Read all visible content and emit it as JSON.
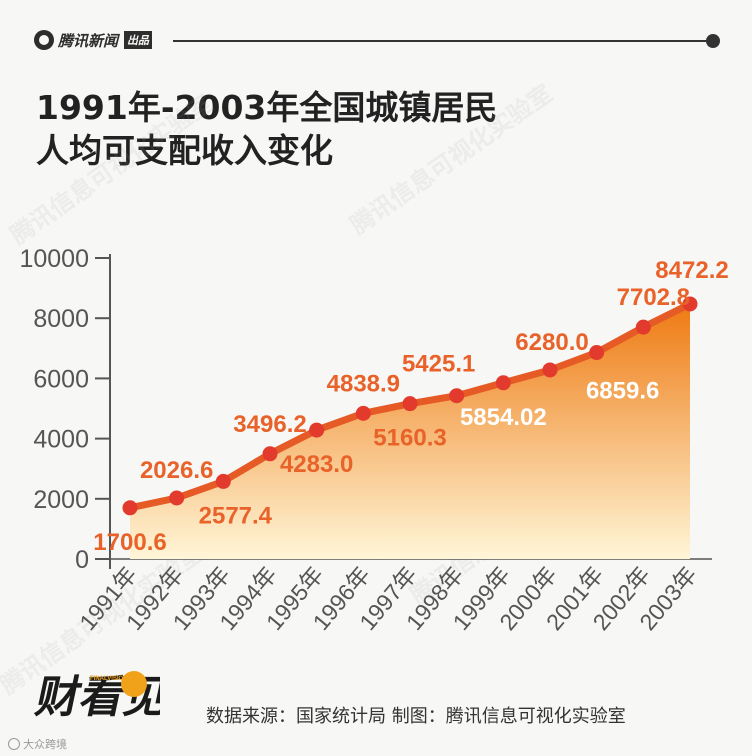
{
  "header": {
    "brand_name": "腾讯新闻",
    "brand_tag": "出品"
  },
  "title": {
    "line1": "1991年-2003年全国城镇居民",
    "line2": "人均可支配收入变化"
  },
  "footer": {
    "logo_text": "财看见",
    "logo_sub": "FINALVISION",
    "source": "数据来源：国家统计局 制图：腾讯信息可视化实验室",
    "corner_mark": "大众跨境"
  },
  "watermark_text": "腾讯信息可视化实验室",
  "colors": {
    "line": "#e65a26",
    "point": "#e23b2e",
    "label": "#e8622a",
    "label_light": "#ffffff",
    "area_top": "#ee7a12",
    "area_bottom": "#fff6d8",
    "axis_text": "#555555"
  },
  "chart_data": {
    "type": "area",
    "categories": [
      "1991年",
      "1992年",
      "1993年",
      "1994年",
      "1995年",
      "1996年",
      "1997年",
      "1998年",
      "1999年",
      "2000年",
      "2001年",
      "2002年",
      "2003年"
    ],
    "values": [
      1700.6,
      2026.6,
      2577.4,
      3496.2,
      4283.0,
      4838.9,
      5160.3,
      5425.1,
      5854.02,
      6280.0,
      6859.6,
      7702.8,
      8472.2
    ],
    "data_labels": [
      "1700.6",
      "2026.6",
      "2577.4",
      "3496.2",
      "4283.0",
      "4838.9",
      "5160.3",
      "5425.1",
      "5854.02",
      "6280.0",
      "6859.6",
      "7702.8",
      "8472.2"
    ],
    "yticks": [
      "0",
      "2000",
      "4000",
      "6000",
      "8000",
      "10000"
    ],
    "ylim": [
      0,
      10000
    ],
    "grid": false,
    "title": "1991年-2003年全国城镇居民人均可支配收入变化"
  }
}
